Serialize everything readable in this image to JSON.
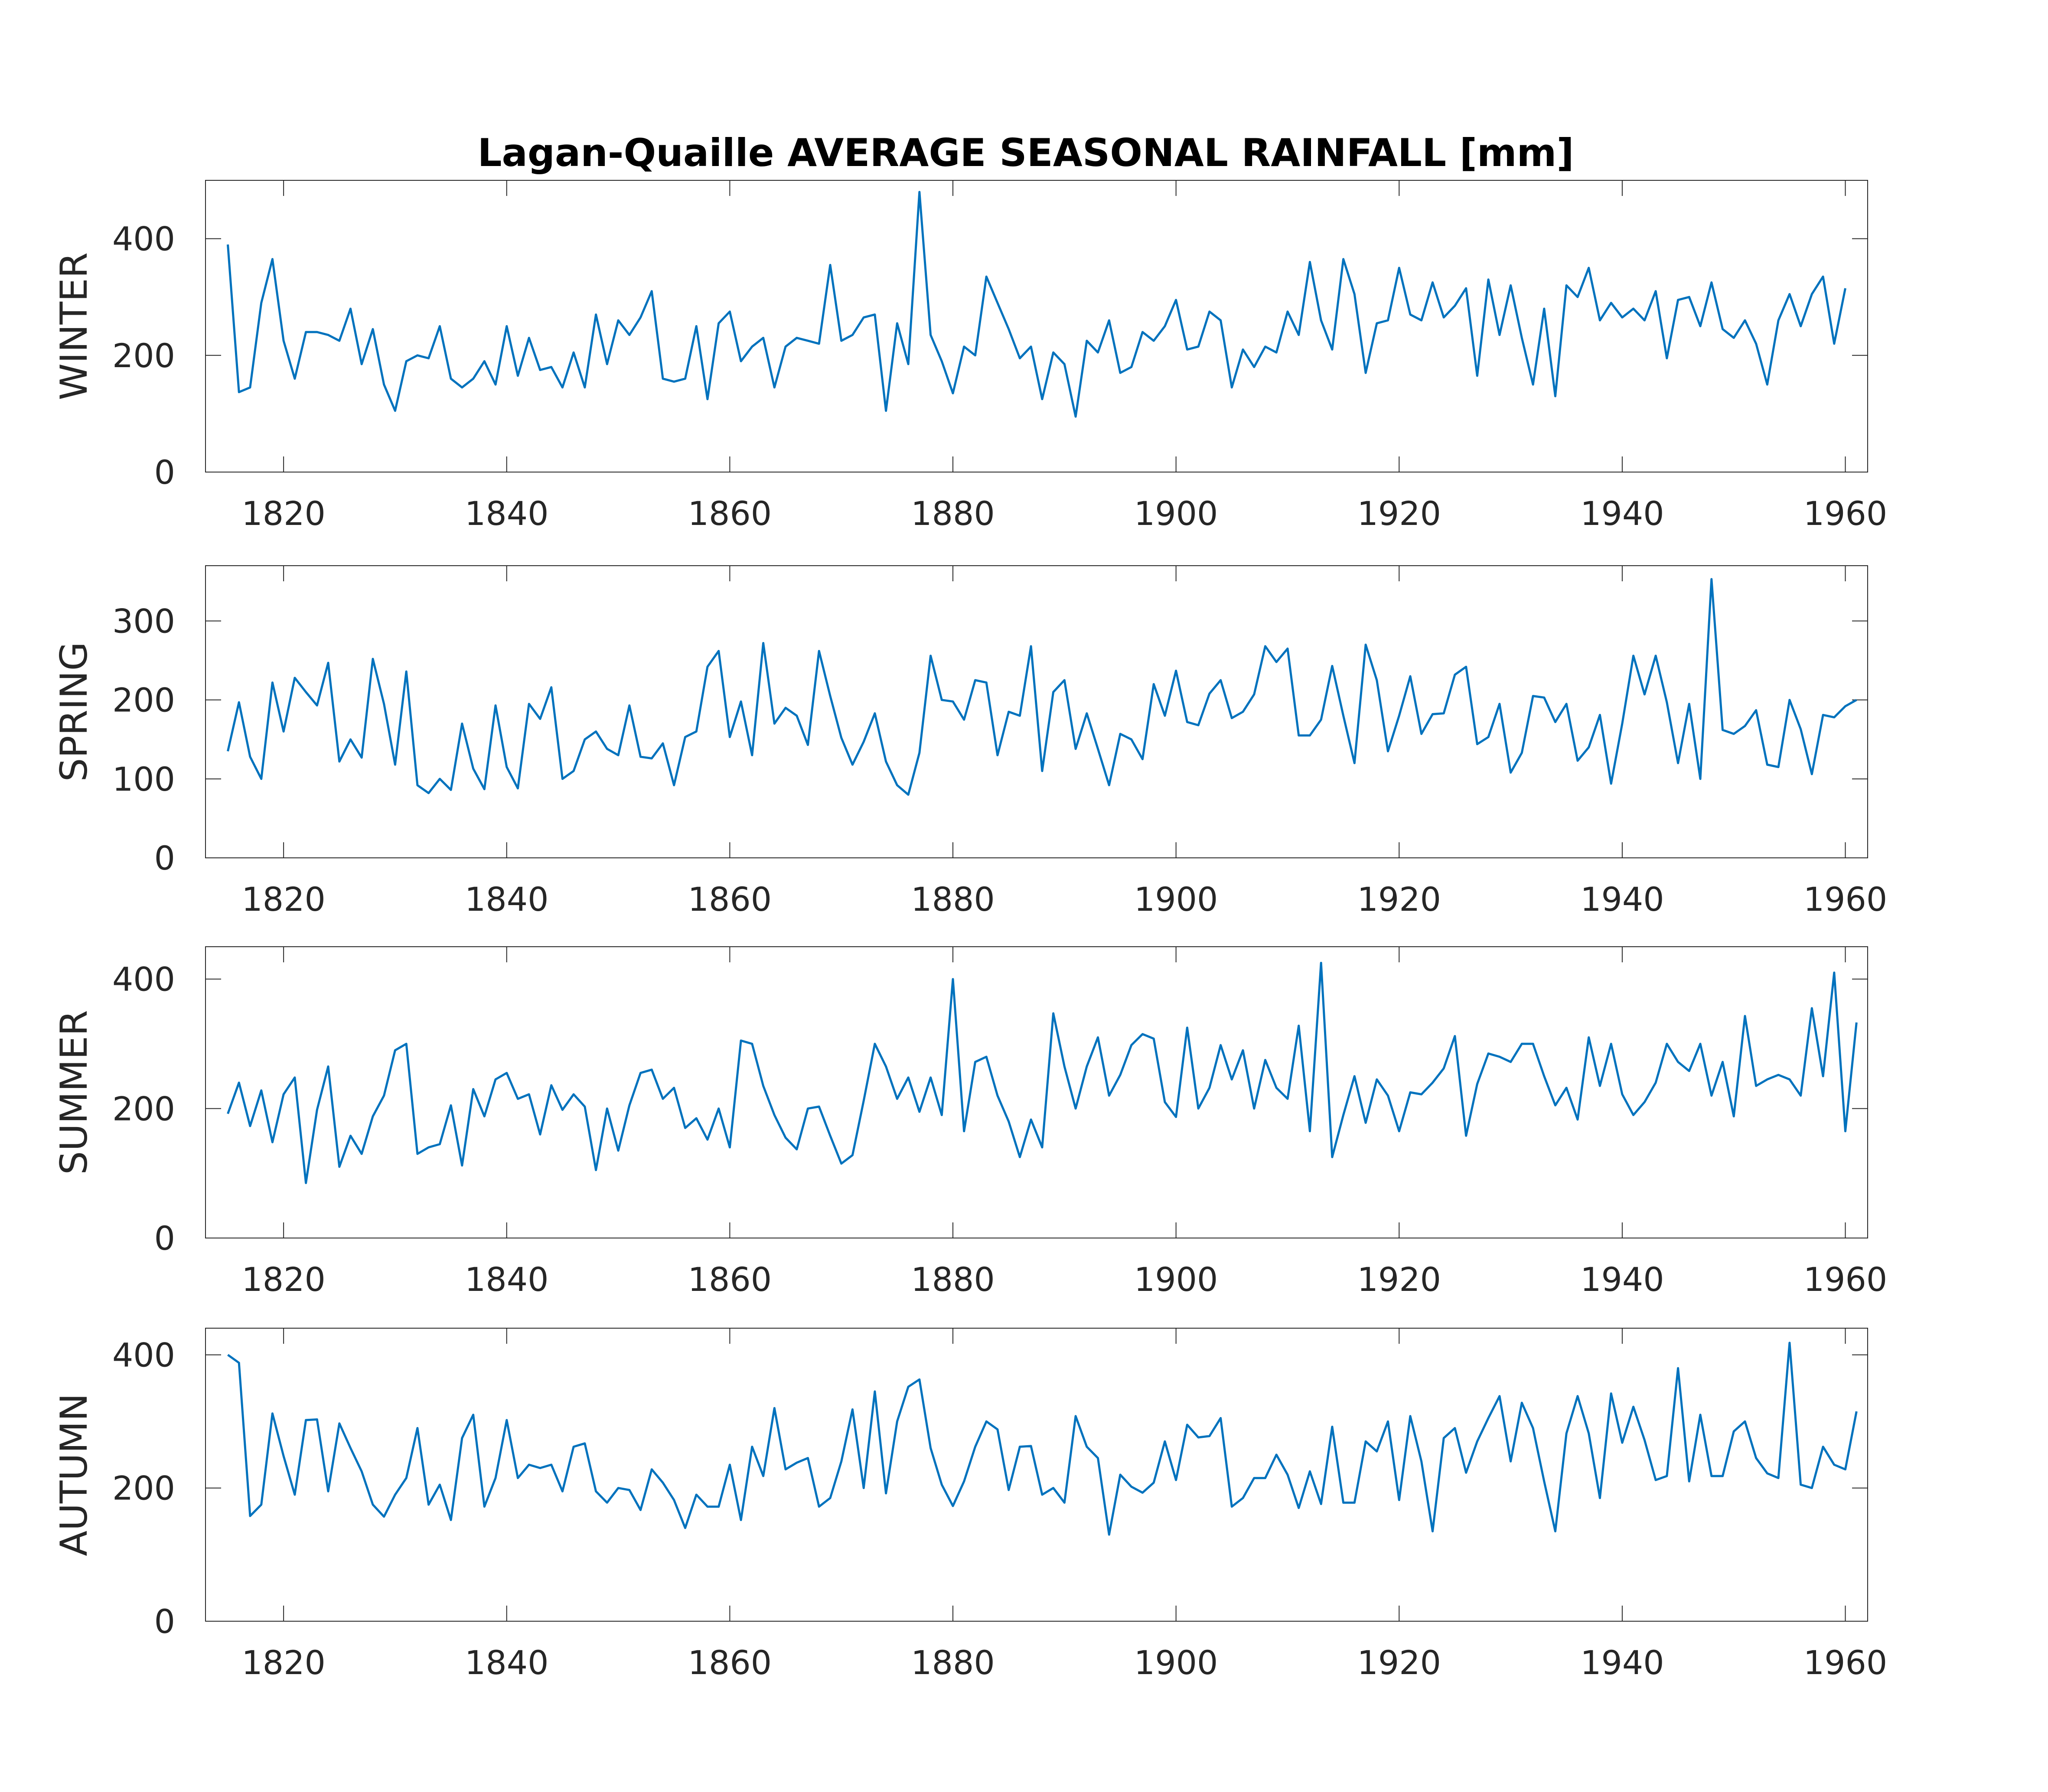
{
  "chart_data": {
    "type": "line",
    "title": "Lagan-Quaille AVERAGE SEASONAL RAINFALL [mm]",
    "line_color": "#0072BD",
    "xlim": [
      1813,
      1962
    ],
    "xticks": [
      1820,
      1840,
      1860,
      1880,
      1900,
      1920,
      1940,
      1960
    ],
    "x_start": 1815,
    "panels": [
      {
        "name": "winter",
        "ylabel": "WINTER",
        "ylim": [
          0,
          500
        ],
        "yticks": [
          0,
          200,
          400
        ],
        "values": [
          390,
          137,
          145,
          290,
          365,
          225,
          160,
          240,
          240,
          235,
          225,
          280,
          185,
          245,
          150,
          105,
          190,
          200,
          195,
          250,
          160,
          145,
          160,
          190,
          150,
          250,
          165,
          230,
          175,
          180,
          145,
          205,
          145,
          270,
          185,
          260,
          235,
          265,
          310,
          160,
          155,
          160,
          250,
          125,
          255,
          275,
          190,
          215,
          230,
          145,
          215,
          230,
          225,
          220,
          355,
          225,
          235,
          265,
          270,
          105,
          255,
          185,
          480,
          235,
          190,
          135,
          215,
          200,
          335,
          290,
          245,
          195,
          215,
          125,
          205,
          185,
          95,
          225,
          205,
          260,
          170,
          180,
          240,
          225,
          250,
          295,
          210,
          215,
          275,
          260,
          145,
          210,
          180,
          215,
          205,
          275,
          235,
          360,
          260,
          210,
          365,
          305,
          170,
          255,
          260,
          350,
          270,
          260,
          325,
          265,
          285,
          315,
          165,
          330,
          235,
          320,
          230,
          150,
          280,
          130,
          320,
          300,
          350,
          260,
          290,
          265,
          280,
          260,
          310,
          195,
          295,
          300,
          250,
          325,
          245,
          230,
          260,
          220,
          150,
          260,
          305,
          250,
          305,
          335,
          220,
          315
        ]
      },
      {
        "name": "spring",
        "ylabel": "SPRING",
        "ylim": [
          0,
          370
        ],
        "yticks": [
          0,
          100,
          200,
          300
        ],
        "values": [
          135,
          197,
          128,
          100,
          222,
          160,
          228,
          210,
          193,
          247,
          122,
          150,
          127,
          252,
          195,
          118,
          236,
          92,
          82,
          100,
          86,
          170,
          113,
          87,
          193,
          115,
          88,
          195,
          176,
          216,
          100,
          110,
          150,
          160,
          138,
          130,
          193,
          128,
          126,
          145,
          92,
          153,
          160,
          242,
          262,
          153,
          198,
          130,
          272,
          170,
          190,
          180,
          143,
          262,
          205,
          152,
          118,
          147,
          183,
          122,
          92,
          80,
          133,
          256,
          200,
          198,
          175,
          225,
          222,
          130,
          185,
          180,
          268,
          110,
          210,
          225,
          138,
          183,
          138,
          92,
          157,
          150,
          125,
          220,
          180,
          237,
          172,
          168,
          208,
          225,
          177,
          185,
          207,
          268,
          248,
          265,
          155,
          155,
          175,
          243,
          180,
          120,
          270,
          225,
          135,
          180,
          230,
          157,
          182,
          183,
          232,
          242,
          144,
          153,
          195,
          108,
          133,
          205,
          203,
          172,
          195,
          123,
          140,
          181,
          94,
          170,
          256,
          207,
          256,
          197,
          120,
          195,
          100,
          353,
          162,
          157,
          167,
          187,
          118,
          115,
          200,
          163,
          106,
          181,
          178,
          192,
          200
        ]
      },
      {
        "name": "summer",
        "ylabel": "SUMMER",
        "ylim": [
          0,
          450
        ],
        "yticks": [
          0,
          200,
          400
        ],
        "values": [
          192,
          240,
          173,
          228,
          148,
          222,
          248,
          85,
          198,
          265,
          110,
          158,
          130,
          188,
          220,
          290,
          300,
          130,
          140,
          145,
          205,
          112,
          230,
          188,
          245,
          255,
          215,
          222,
          160,
          236,
          198,
          222,
          203,
          105,
          200,
          135,
          205,
          255,
          260,
          215,
          232,
          170,
          185,
          152,
          200,
          140,
          305,
          300,
          235,
          190,
          155,
          137,
          200,
          203,
          158,
          115,
          128,
          212,
          300,
          265,
          215,
          248,
          195,
          248,
          190,
          400,
          165,
          272,
          280,
          220,
          180,
          125,
          183,
          140,
          347,
          265,
          200,
          265,
          310,
          220,
          252,
          298,
          315,
          308,
          210,
          187,
          325,
          200,
          232,
          298,
          245,
          290,
          200,
          275,
          232,
          215,
          328,
          165,
          425,
          125,
          190,
          250,
          178,
          245,
          220,
          165,
          225,
          222,
          240,
          262,
          312,
          158,
          238,
          285,
          280,
          272,
          300,
          300,
          250,
          205,
          232,
          183,
          310,
          235,
          300,
          222,
          190,
          210,
          240,
          300,
          272,
          258,
          300,
          220,
          272,
          188,
          343,
          235,
          245,
          252,
          245,
          220,
          355,
          250,
          410,
          165,
          333
        ]
      },
      {
        "name": "autumn",
        "ylabel": "AUTUMN",
        "ylim": [
          0,
          440
        ],
        "yticks": [
          0,
          200,
          400
        ],
        "values": [
          400,
          388,
          158,
          175,
          312,
          248,
          190,
          302,
          303,
          195,
          297,
          260,
          225,
          175,
          157,
          190,
          215,
          290,
          175,
          205,
          152,
          275,
          310,
          172,
          215,
          302,
          215,
          235,
          230,
          235,
          195,
          262,
          267,
          195,
          178,
          200,
          197,
          167,
          228,
          208,
          182,
          140,
          190,
          172,
          172,
          235,
          152,
          262,
          218,
          320,
          228,
          238,
          245,
          172,
          185,
          240,
          318,
          200,
          345,
          192,
          300,
          352,
          363,
          260,
          205,
          173,
          210,
          262,
          300,
          288,
          197,
          262,
          263,
          190,
          200,
          178,
          308,
          262,
          245,
          130,
          220,
          202,
          193,
          208,
          270,
          212,
          295,
          276,
          278,
          305,
          172,
          185,
          215,
          215,
          250,
          220,
          170,
          225,
          176,
          292,
          178,
          178,
          270,
          255,
          300,
          182,
          308,
          240,
          135,
          275,
          290,
          223,
          270,
          305,
          338,
          240,
          328,
          290,
          210,
          135,
          282,
          338,
          282,
          185,
          342,
          268,
          322,
          272,
          212,
          218,
          380,
          210,
          310,
          218,
          218,
          285,
          300,
          245,
          222,
          215,
          418,
          205,
          200,
          262,
          235,
          228,
          315
        ]
      }
    ]
  }
}
